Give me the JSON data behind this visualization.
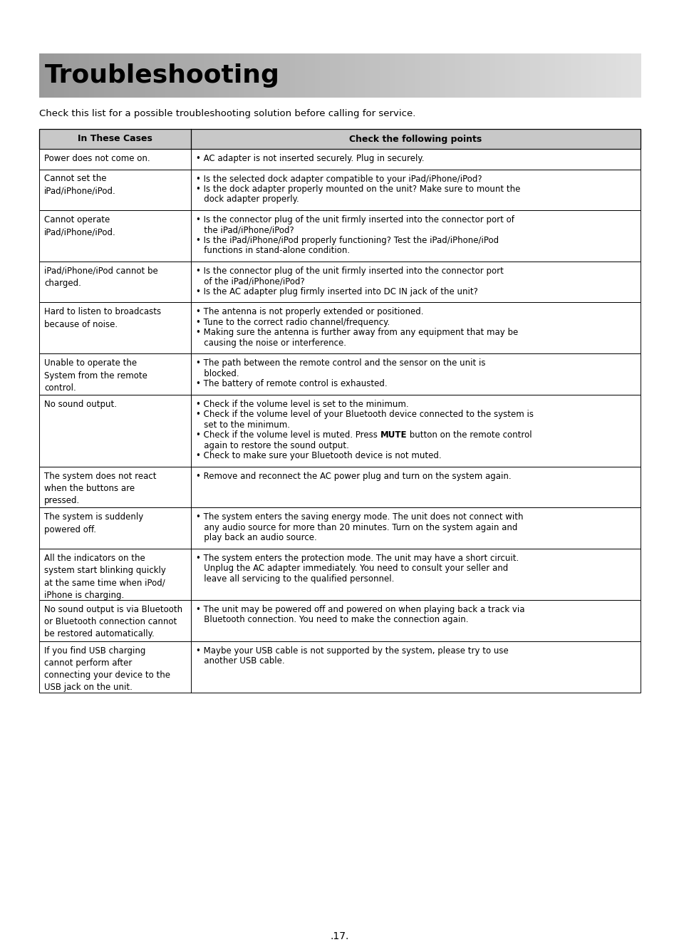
{
  "title": "Troubleshooting",
  "subtitle": "Check this list for a possible troubleshooting solution before calling for service.",
  "col1_header": "In These Cases",
  "col2_header": "Check the following points",
  "page_number": ".17.",
  "background_color": "#ffffff",
  "rows": [
    {
      "left": "Power does not come on.",
      "right": [
        [
          {
            "t": "• AC adapter is not inserted securely. Plug in securely.",
            "b": false
          }
        ]
      ]
    },
    {
      "left": "Cannot set the\niPad/iPhone/iPod.",
      "right": [
        [
          {
            "t": "• Is the selected dock adapter compatible to your iPad/iPhone/iPod?",
            "b": false
          }
        ],
        [
          {
            "t": "• Is the dock adapter properly mounted on the unit? Make sure to mount the",
            "b": false
          }
        ],
        [
          {
            "t": "   dock adapter properly.",
            "b": false
          }
        ]
      ]
    },
    {
      "left": "Cannot operate\niPad/iPhone/iPod.",
      "right": [
        [
          {
            "t": "• Is the connector plug of the unit firmly inserted into the connector port of",
            "b": false
          }
        ],
        [
          {
            "t": "   the iPad/iPhone/iPod?",
            "b": false
          }
        ],
        [
          {
            "t": "• Is the iPad/iPhone/iPod properly functioning? Test the iPad/iPhone/iPod",
            "b": false
          }
        ],
        [
          {
            "t": "   functions in stand-alone condition.",
            "b": false
          }
        ]
      ]
    },
    {
      "left": "iPad/iPhone/iPod cannot be\ncharged.",
      "right": [
        [
          {
            "t": "• Is the connector plug of the unit firmly inserted into the connector port",
            "b": false
          }
        ],
        [
          {
            "t": "   of the iPad/iPhone/iPod?",
            "b": false
          }
        ],
        [
          {
            "t": "• Is the AC adapter plug firmly inserted into DC IN jack of the unit?",
            "b": false
          }
        ]
      ]
    },
    {
      "left": "Hard to listen to broadcasts\nbecause of noise.",
      "right": [
        [
          {
            "t": "• The antenna is not properly extended or positioned.",
            "b": false
          }
        ],
        [
          {
            "t": "• Tune to the correct radio channel/frequency.",
            "b": false
          }
        ],
        [
          {
            "t": "• Making sure the antenna is further away from any equipment that may be",
            "b": false
          }
        ],
        [
          {
            "t": "   causing the noise or interference.",
            "b": false
          }
        ]
      ]
    },
    {
      "left": "Unable to operate the\nSystem from the remote\ncontrol.",
      "right": [
        [
          {
            "t": "• The path between the remote control and the sensor on the unit is",
            "b": false
          }
        ],
        [
          {
            "t": "   blocked.",
            "b": false
          }
        ],
        [
          {
            "t": "• The battery of remote control is exhausted.",
            "b": false
          }
        ]
      ]
    },
    {
      "left": "No sound output.",
      "right": [
        [
          {
            "t": "• Check if the volume level is set to the minimum.",
            "b": false
          }
        ],
        [
          {
            "t": "• Check if the volume level of your Bluetooth device connected to the system is",
            "b": false
          }
        ],
        [
          {
            "t": "   set to the minimum.",
            "b": false
          }
        ],
        [
          {
            "t": "• Check if the volume level is muted. Press ",
            "b": false
          },
          {
            "t": "MUTE",
            "b": true
          },
          {
            "t": " button on the remote control",
            "b": false
          }
        ],
        [
          {
            "t": "   again to restore the sound output.",
            "b": false
          }
        ],
        [
          {
            "t": "• Check to make sure your Bluetooth device is not muted.",
            "b": false
          }
        ]
      ]
    },
    {
      "left": "The system does not react\nwhen the buttons are\npressed.",
      "right": [
        [
          {
            "t": "• Remove and reconnect the AC power plug and turn on the system again.",
            "b": false
          }
        ]
      ]
    },
    {
      "left": "The system is suddenly\npowered off.",
      "right": [
        [
          {
            "t": "• The system enters the saving energy mode. The unit does not connect with",
            "b": false
          }
        ],
        [
          {
            "t": "   any audio source for more than 20 minutes. Turn on the system again and",
            "b": false
          }
        ],
        [
          {
            "t": "   play back an audio source.",
            "b": false
          }
        ]
      ]
    },
    {
      "left": "All the indicators on the\nsystem start blinking quickly\nat the same time when iPod/\niPhone is charging.",
      "right": [
        [
          {
            "t": "• The system enters the protection mode. The unit may have a short circuit.",
            "b": false
          }
        ],
        [
          {
            "t": "   Unplug the AC adapter immediately. You need to consult your seller and",
            "b": false
          }
        ],
        [
          {
            "t": "   leave all servicing to the qualified personnel.",
            "b": false
          }
        ]
      ]
    },
    {
      "left": "No sound output is via Bluetooth\nor Bluetooth connection cannot\nbe restored automatically.",
      "right": [
        [
          {
            "t": "• The unit may be powered off and powered on when playing back a track via",
            "b": false
          }
        ],
        [
          {
            "t": "   Bluetooth connection. You need to make the connection again.",
            "b": false
          }
        ]
      ]
    },
    {
      "left": "If you find USB charging\ncannot perform after\nconnecting your device to the\nUSB jack on the unit.",
      "right": [
        [
          {
            "t": "• Maybe your USB cable is not supported by the system, please try to use",
            "b": false
          }
        ],
        [
          {
            "t": "   another USB cable.",
            "b": false
          }
        ]
      ]
    }
  ]
}
